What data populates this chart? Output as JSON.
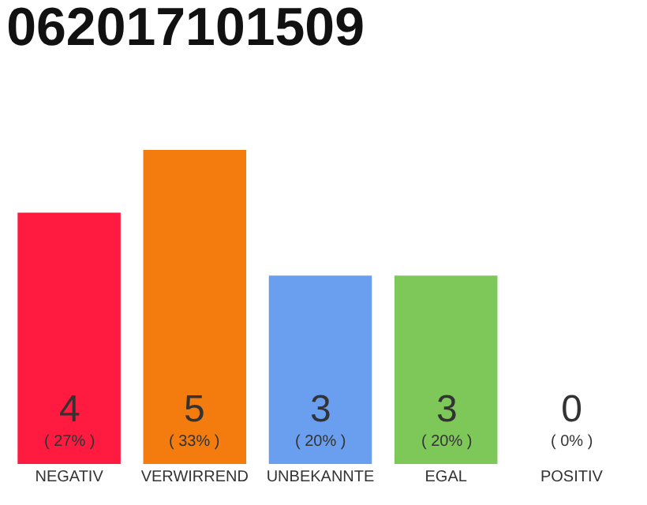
{
  "chart_data": {
    "type": "bar",
    "title": "062017101509",
    "categories": [
      "NEGATIV",
      "VERWIRREND",
      "UNBEKANNTE",
      "EGAL",
      "POSITIV"
    ],
    "values": [
      4,
      5,
      3,
      3,
      0
    ],
    "colors": [
      "#ff1a40",
      "#f47c0e",
      "#6a9ff0",
      "#7ec85a",
      "#bdbdbd"
    ],
    "value_labels": [
      "4\n( 27% )",
      "5\n( 33% )",
      "3\n( 20% )",
      "3\n( 20% )",
      "0\n( 0% )"
    ],
    "legend": false
  }
}
